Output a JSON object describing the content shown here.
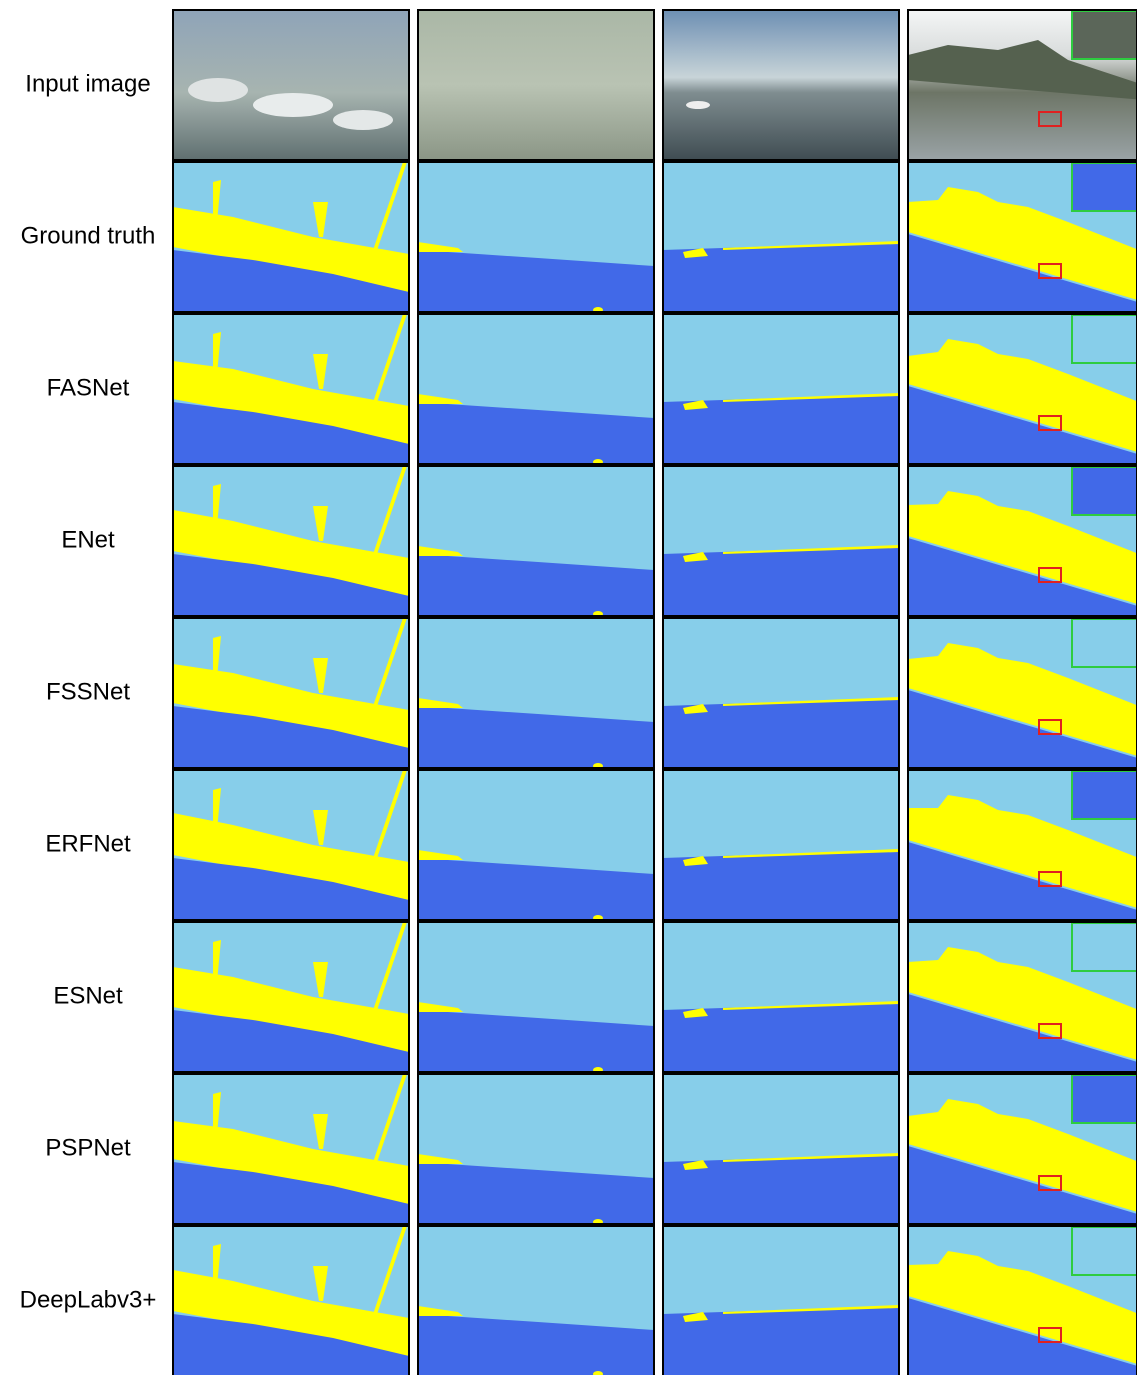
{
  "rows": [
    "Input image",
    "Ground truth",
    "FASNet",
    "ENet",
    "FSSNet",
    "ERFNet",
    "ESNet",
    "PSPNet",
    "DeepLabv3+"
  ]
}
